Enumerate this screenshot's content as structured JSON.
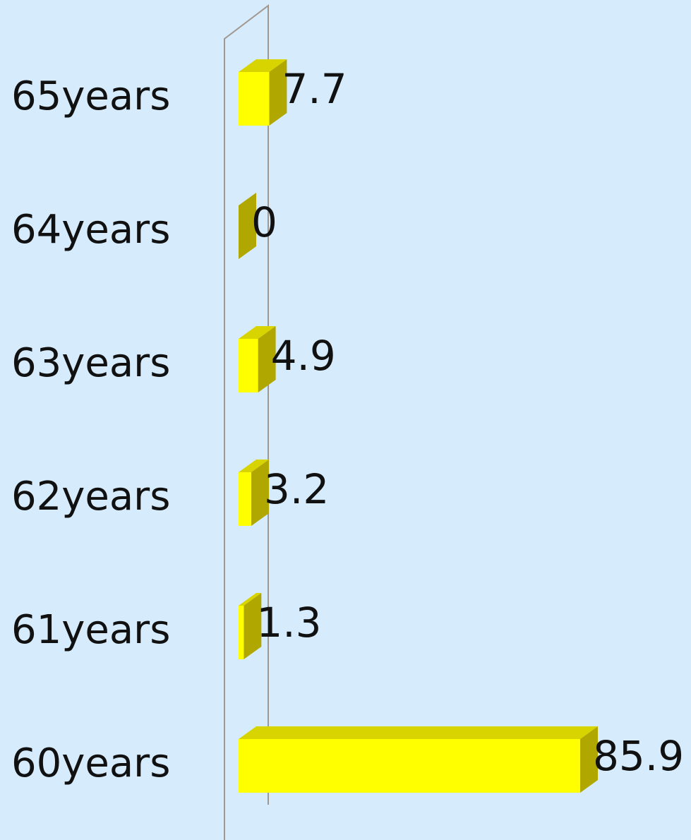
{
  "chart_data": {
    "type": "bar3d_horizontal",
    "categories": [
      "60years",
      "61years",
      "62years",
      "63years",
      "64years",
      "65years"
    ],
    "values": [
      85.9,
      1.3,
      3.2,
      4.9,
      0,
      7.7
    ],
    "color": "#ffff00"
  }
}
